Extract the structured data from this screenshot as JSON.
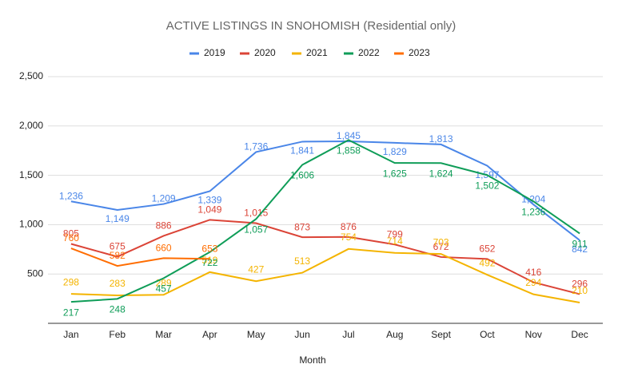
{
  "chart_data": {
    "type": "line",
    "title": "ACTIVE LISTINGS IN SNOHOMISH  (Residential only)",
    "x_label": "Month",
    "categories": [
      "Jan",
      "Feb",
      "Mar",
      "Apr",
      "May",
      "Jun",
      "Jul",
      "Aug",
      "Sept",
      "Oct",
      "Nov",
      "Dec"
    ],
    "ylim": [
      0,
      2500
    ],
    "yticks": [
      500,
      {
        "value": 1000,
        "label": "1,000"
      },
      {
        "value": 1500,
        "label": "1,500"
      },
      {
        "value": 2000,
        "label": "2,000"
      },
      {
        "value": 2500,
        "label": "2,500"
      }
    ],
    "grid": true,
    "legend": "top",
    "series": [
      {
        "name": "2019",
        "color": "#4a86e8",
        "values": [
          1236,
          1149,
          1209,
          1339,
          1736,
          1841,
          1845,
          1829,
          1813,
          1597,
          1204,
          842
        ],
        "value_labels": [
          "1,236",
          "1,149",
          "1,209",
          "1,339",
          "1,736",
          "1,841",
          "1,845",
          "1,829",
          "1,813",
          "1,597",
          "1,204",
          "842"
        ]
      },
      {
        "name": "2020",
        "color": "#db4437",
        "values": [
          805,
          675,
          886,
          1049,
          1015,
          873,
          876,
          799,
          672,
          652,
          416,
          296
        ],
        "value_labels": [
          "805",
          "675",
          "886",
          "1,049",
          "1,015",
          "873",
          "876",
          "799",
          "672",
          "652",
          "416",
          "296"
        ]
      },
      {
        "name": "2021",
        "color": "#f4b400",
        "values": [
          298,
          283,
          289,
          519,
          427,
          513,
          754,
          714,
          703,
          492,
          294,
          210
        ],
        "value_labels": [
          "298",
          "283",
          "289",
          "519",
          "427",
          "513",
          "754",
          "714",
          "703",
          "492",
          "294",
          "210"
        ]
      },
      {
        "name": "2022",
        "color": "#0f9d58",
        "values": [
          217,
          248,
          457,
          722,
          1057,
          1606,
          1858,
          1625,
          1624,
          1502,
          1236,
          911
        ],
        "value_labels": [
          "217",
          "248",
          "457",
          "722",
          "1,057",
          "1,606",
          "1,858",
          "1,625",
          "1,624",
          "1,502",
          "1,236",
          "911"
        ]
      },
      {
        "name": "2023",
        "color": "#ff6d01",
        "values": [
          760,
          582,
          660,
          653,
          null,
          null,
          null,
          null,
          null,
          null,
          null,
          null
        ],
        "value_labels": [
          "760",
          "582",
          "660",
          "653",
          null,
          null,
          null,
          null,
          null,
          null,
          null,
          null
        ]
      }
    ]
  }
}
